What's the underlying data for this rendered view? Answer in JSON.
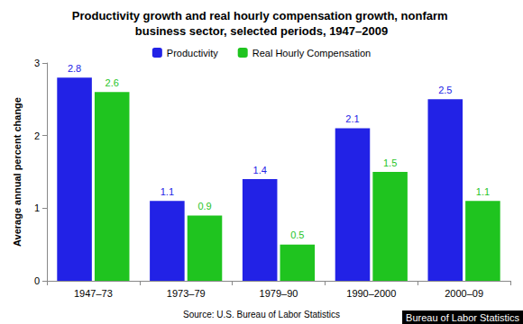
{
  "chart_data": {
    "type": "bar",
    "title": "Productivity growth and real hourly compensation growth, nonfarm business sector, selected periods, 1947–2009",
    "y_label": "Average annual percent change",
    "categories": [
      "1947–73",
      "1973–79",
      "1979–90",
      "1990–2000",
      "2000–09"
    ],
    "series": [
      {
        "name": "Productivity",
        "color": "#2222e6",
        "values": [
          2.8,
          1.1,
          1.4,
          2.1,
          2.5
        ]
      },
      {
        "name": "Real Hourly Compensation",
        "color": "#1fc41f",
        "values": [
          2.6,
          0.9,
          0.5,
          1.5,
          1.1
        ]
      }
    ],
    "ylim": [
      0,
      3
    ],
    "yticks": [
      0,
      1,
      2,
      3
    ],
    "grid": false,
    "legend": "top",
    "data_labels": true,
    "annotations": [
      "Source: U.S. Bureau of Labor Statistics",
      "Bureau of Labor Statistics"
    ]
  }
}
